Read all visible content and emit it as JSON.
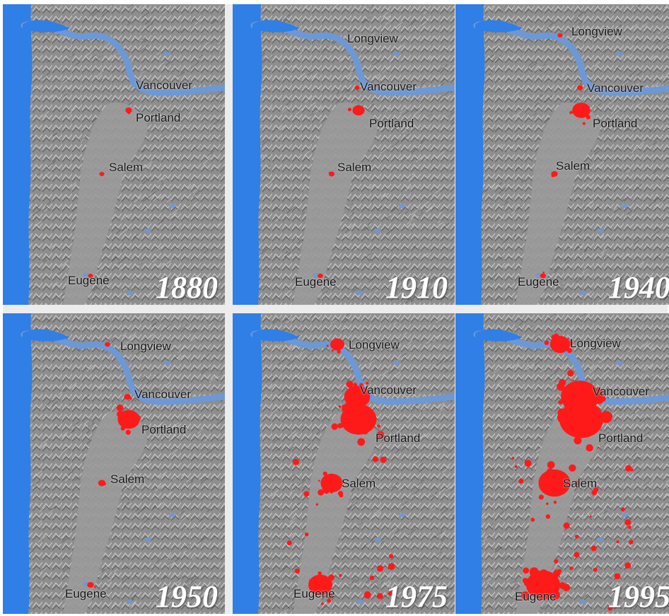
{
  "colors": {
    "water": "#2f7fe6",
    "river": "#6d98d6",
    "terrain": "#8e8e8e",
    "valley": "#9a9a9a",
    "urban": "#ff1a1a",
    "frame": "#ececec"
  },
  "panels": [
    {
      "year": "1880",
      "cities": {
        "longview": "",
        "vancouver": "Vancouver",
        "portland": "Portland",
        "salem": "Salem",
        "eugene": "Eugene"
      },
      "urban_extent": {
        "longview": 0,
        "vancouver": 0,
        "portland": 0.06,
        "salem": 0.02,
        "eugene": 0.02,
        "sprawl": 0
      }
    },
    {
      "year": "1910",
      "cities": {
        "longview": "Longview",
        "vancouver": "Vancouver",
        "portland": "Portland",
        "salem": "Salem",
        "eugene": "Eugene"
      },
      "urban_extent": {
        "longview": 0,
        "vancouver": 0.02,
        "portland": 0.2,
        "salem": 0.04,
        "eugene": 0.03,
        "sprawl": 0
      }
    },
    {
      "year": "1940",
      "cities": {
        "longview": "Longview",
        "vancouver": "Vancouver",
        "portland": "Portland",
        "salem": "Salem",
        "eugene": "Eugene"
      },
      "urban_extent": {
        "longview": 0.02,
        "vancouver": 0.04,
        "portland": 0.35,
        "salem": 0.06,
        "eugene": 0.04,
        "sprawl": 0
      }
    },
    {
      "year": "1950",
      "cities": {
        "longview": "Longview",
        "vancouver": "Vancouver",
        "portland": "Portland",
        "salem": "Salem",
        "eugene": "Eugene"
      },
      "urban_extent": {
        "longview": 0.03,
        "vancouver": 0.06,
        "portland": 0.45,
        "salem": 0.08,
        "eugene": 0.06,
        "sprawl": 0
      }
    },
    {
      "year": "1975",
      "cities": {
        "longview": "Longview",
        "vancouver": "Vancouver",
        "portland": "Portland",
        "salem": "Salem",
        "eugene": "Eugene"
      },
      "urban_extent": {
        "longview": 0.25,
        "vancouver": 0.55,
        "portland": 0.8,
        "salem": 0.45,
        "eugene": 0.5,
        "sprawl": 0.5
      }
    },
    {
      "year": "1995",
      "cities": {
        "longview": "Longview",
        "vancouver": "Vancouver",
        "portland": "Portland",
        "salem": "Salem",
        "eugene": "Eugene"
      },
      "urban_extent": {
        "longview": 0.4,
        "vancouver": 0.85,
        "portland": 1.0,
        "salem": 0.7,
        "eugene": 0.75,
        "sprawl": 0.8
      }
    }
  ]
}
